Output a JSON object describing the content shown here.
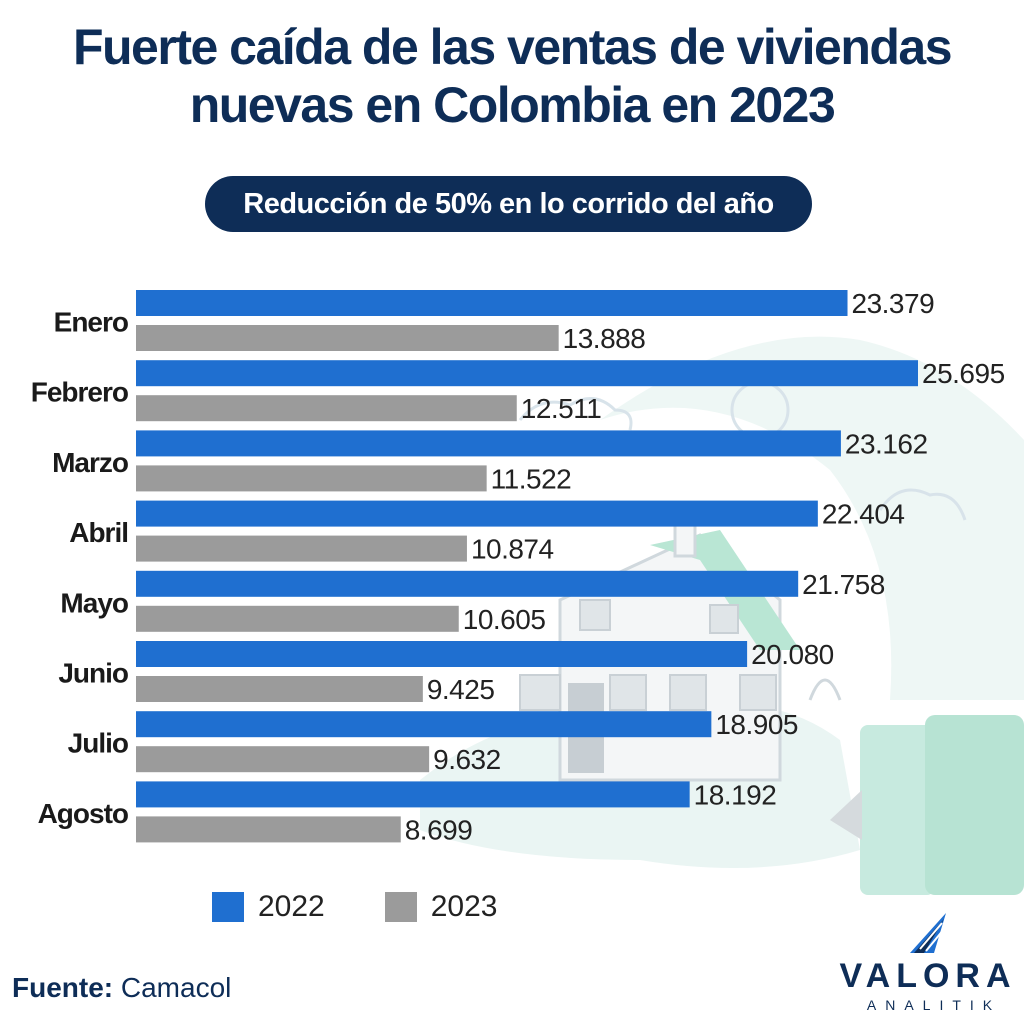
{
  "title_line1": "Fuerte caída de las ventas de viviendas",
  "title_line2": "nuevas en Colombia en 2023",
  "subtitle": "Reducción de 50% en lo corrido del año",
  "source_label": "Fuente:",
  "source_value": " Camacol",
  "logo": {
    "word": "VALORA",
    "sub": "ANALITIK",
    "icon": "valora-mark-icon"
  },
  "colors": {
    "series_2022": "#1f6fd0",
    "series_2023": "#9b9b9b",
    "title": "#0e2d57"
  },
  "chart_data": {
    "type": "bar",
    "orientation": "horizontal",
    "categories": [
      "Enero",
      "Febrero",
      "Marzo",
      "Abril",
      "Mayo",
      "Junio",
      "Julio",
      "Agosto"
    ],
    "series": [
      {
        "name": "2022",
        "values": [
          23379,
          25695,
          23162,
          22404,
          21758,
          20080,
          18905,
          18192
        ],
        "labels": [
          "23.379",
          "25.695",
          "23.162",
          "22.404",
          "21.758",
          "20.080",
          "18.905",
          "18.192"
        ]
      },
      {
        "name": "2023",
        "values": [
          13888,
          12511,
          11522,
          10874,
          10605,
          9425,
          9632,
          8699
        ],
        "labels": [
          "13.888",
          "12.511",
          "11.522",
          "10.874",
          "10.605",
          "9.425",
          "9.632",
          "8.699"
        ]
      }
    ],
    "xlim": [
      0,
      25695
    ],
    "grid": false,
    "legend": "bottom"
  }
}
